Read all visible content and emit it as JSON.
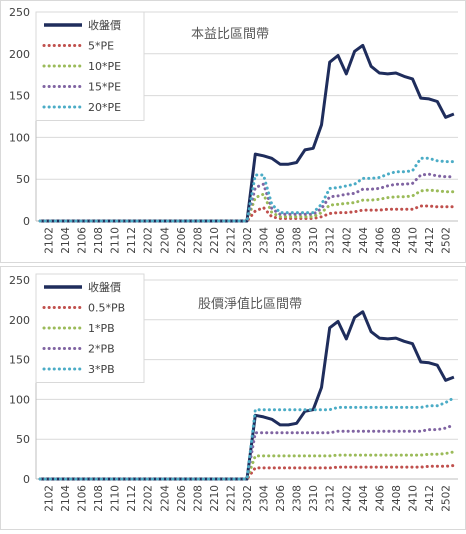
{
  "chart_data": [
    {
      "type": "line",
      "title": "本益比區間帶",
      "ylim": [
        0,
        250
      ],
      "yticks": [
        0,
        50,
        100,
        150,
        200,
        250
      ],
      "grid": true,
      "legend_position": "top-left",
      "x_tick_labels": [
        "2102",
        "2104",
        "2106",
        "2108",
        "2110",
        "2112",
        "2202",
        "2204",
        "2206",
        "2208",
        "2210",
        "2212",
        "2302",
        "2304",
        "2306",
        "2308",
        "2310",
        "2312",
        "2402",
        "2404",
        "2406",
        "2408",
        "2410",
        "2412",
        "2502"
      ],
      "x": [
        "2101",
        "2102",
        "2103",
        "2104",
        "2105",
        "2106",
        "2107",
        "2108",
        "2109",
        "2110",
        "2111",
        "2112",
        "2201",
        "2202",
        "2203",
        "2204",
        "2205",
        "2206",
        "2207",
        "2208",
        "2209",
        "2210",
        "2211",
        "2212",
        "2301",
        "2302",
        "2303",
        "2304",
        "2305",
        "2306",
        "2307",
        "2308",
        "2309",
        "2310",
        "2311",
        "2312",
        "2401",
        "2402",
        "2403",
        "2404",
        "2405",
        "2406",
        "2407",
        "2408",
        "2409",
        "2410",
        "2411",
        "2412",
        "2501",
        "2502",
        "2503"
      ],
      "series": [
        {
          "name": "收盤價",
          "color": "#1f2d5c",
          "style": "solid",
          "values": [
            0,
            0,
            0,
            0,
            0,
            0,
            0,
            0,
            0,
            0,
            0,
            0,
            0,
            0,
            0,
            0,
            0,
            0,
            0,
            0,
            0,
            0,
            0,
            0,
            0,
            0,
            80,
            78,
            75,
            68,
            68,
            70,
            85,
            87,
            115,
            190,
            198,
            176,
            203,
            210,
            185,
            177,
            176,
            177,
            173,
            170,
            147,
            146,
            143,
            124,
            128
          ]
        },
        {
          "name": "5*PE",
          "color": "#c0504d",
          "style": "dotted",
          "values": [
            0,
            0,
            0,
            0,
            0,
            0,
            0,
            0,
            0,
            0,
            0,
            0,
            0,
            0,
            0,
            0,
            0,
            0,
            0,
            0,
            0,
            0,
            0,
            0,
            0,
            0,
            12,
            16,
            5,
            3,
            3,
            3,
            3,
            3,
            5,
            9,
            10,
            10,
            11,
            13,
            13,
            13,
            14,
            14,
            14,
            14,
            18,
            18,
            17,
            17,
            17
          ]
        },
        {
          "name": "10*PE",
          "color": "#9bbb59",
          "style": "dotted",
          "values": [
            0,
            0,
            0,
            0,
            0,
            0,
            0,
            0,
            0,
            0,
            0,
            0,
            0,
            0,
            0,
            0,
            0,
            0,
            0,
            0,
            0,
            0,
            0,
            0,
            0,
            0,
            28,
            32,
            10,
            5,
            5,
            5,
            5,
            5,
            10,
            19,
            20,
            21,
            22,
            25,
            25,
            26,
            28,
            29,
            29,
            30,
            36,
            37,
            36,
            35,
            35
          ]
        },
        {
          "name": "15*PE",
          "color": "#8064a2",
          "style": "dotted",
          "values": [
            0,
            0,
            0,
            0,
            0,
            0,
            0,
            0,
            0,
            0,
            0,
            0,
            0,
            0,
            0,
            0,
            0,
            0,
            0,
            0,
            0,
            0,
            0,
            0,
            0,
            0,
            40,
            44,
            15,
            8,
            8,
            8,
            8,
            8,
            15,
            29,
            30,
            32,
            33,
            38,
            38,
            39,
            42,
            44,
            44,
            45,
            55,
            56,
            54,
            53,
            53
          ]
        },
        {
          "name": "20*PE",
          "color": "#4bacc6",
          "style": "dotted",
          "values": [
            0,
            0,
            0,
            0,
            0,
            0,
            0,
            0,
            0,
            0,
            0,
            0,
            0,
            0,
            0,
            0,
            0,
            0,
            0,
            0,
            0,
            0,
            0,
            0,
            0,
            0,
            55,
            55,
            20,
            10,
            10,
            10,
            10,
            10,
            20,
            39,
            40,
            42,
            44,
            51,
            51,
            52,
            56,
            59,
            59,
            60,
            75,
            75,
            72,
            71,
            71
          ]
        }
      ]
    },
    {
      "type": "line",
      "title": "股價淨值比區間帶",
      "ylim": [
        0,
        250
      ],
      "yticks": [
        0,
        50,
        100,
        150,
        200,
        250
      ],
      "grid": true,
      "legend_position": "top-left",
      "x_tick_labels": [
        "2102",
        "2104",
        "2106",
        "2108",
        "2110",
        "2112",
        "2202",
        "2204",
        "2206",
        "2208",
        "2210",
        "2212",
        "2302",
        "2304",
        "2306",
        "2308",
        "2310",
        "2312",
        "2402",
        "2404",
        "2406",
        "2408",
        "2410",
        "2412",
        "2502"
      ],
      "x": [
        "2101",
        "2102",
        "2103",
        "2104",
        "2105",
        "2106",
        "2107",
        "2108",
        "2109",
        "2110",
        "2111",
        "2112",
        "2201",
        "2202",
        "2203",
        "2204",
        "2205",
        "2206",
        "2207",
        "2208",
        "2209",
        "2210",
        "2211",
        "2212",
        "2301",
        "2302",
        "2303",
        "2304",
        "2305",
        "2306",
        "2307",
        "2308",
        "2309",
        "2310",
        "2311",
        "2312",
        "2401",
        "2402",
        "2403",
        "2404",
        "2405",
        "2406",
        "2407",
        "2408",
        "2409",
        "2410",
        "2411",
        "2412",
        "2501",
        "2502",
        "2503"
      ],
      "series": [
        {
          "name": "收盤價",
          "color": "#1f2d5c",
          "style": "solid",
          "values": [
            0,
            0,
            0,
            0,
            0,
            0,
            0,
            0,
            0,
            0,
            0,
            0,
            0,
            0,
            0,
            0,
            0,
            0,
            0,
            0,
            0,
            0,
            0,
            0,
            0,
            0,
            80,
            78,
            75,
            68,
            68,
            70,
            85,
            87,
            115,
            190,
            198,
            176,
            203,
            210,
            185,
            177,
            176,
            177,
            173,
            170,
            147,
            146,
            143,
            124,
            128
          ]
        },
        {
          "name": "0.5*PB",
          "color": "#c0504d",
          "style": "dotted",
          "values": [
            0,
            0,
            0,
            0,
            0,
            0,
            0,
            0,
            0,
            0,
            0,
            0,
            0,
            0,
            0,
            0,
            0,
            0,
            0,
            0,
            0,
            0,
            0,
            0,
            0,
            0,
            14,
            14,
            14,
            14,
            14,
            14,
            14,
            14,
            14,
            14,
            15,
            15,
            15,
            15,
            15,
            15,
            15,
            15,
            15,
            15,
            15,
            16,
            16,
            16,
            17
          ]
        },
        {
          "name": "1*PB",
          "color": "#9bbb59",
          "style": "dotted",
          "values": [
            0,
            0,
            0,
            0,
            0,
            0,
            0,
            0,
            0,
            0,
            0,
            0,
            0,
            0,
            0,
            0,
            0,
            0,
            0,
            0,
            0,
            0,
            0,
            0,
            0,
            0,
            29,
            29,
            29,
            29,
            29,
            29,
            29,
            29,
            29,
            29,
            30,
            30,
            30,
            30,
            30,
            30,
            30,
            30,
            30,
            30,
            30,
            31,
            31,
            32,
            34
          ]
        },
        {
          "name": "2*PB",
          "color": "#8064a2",
          "style": "dotted",
          "values": [
            0,
            0,
            0,
            0,
            0,
            0,
            0,
            0,
            0,
            0,
            0,
            0,
            0,
            0,
            0,
            0,
            0,
            0,
            0,
            0,
            0,
            0,
            0,
            0,
            0,
            0,
            58,
            58,
            58,
            58,
            58,
            58,
            58,
            58,
            58,
            58,
            60,
            60,
            60,
            60,
            60,
            60,
            60,
            60,
            60,
            60,
            60,
            62,
            62,
            64,
            68
          ]
        },
        {
          "name": "3*PB",
          "color": "#4bacc6",
          "style": "dotted",
          "values": [
            0,
            0,
            0,
            0,
            0,
            0,
            0,
            0,
            0,
            0,
            0,
            0,
            0,
            0,
            0,
            0,
            0,
            0,
            0,
            0,
            0,
            0,
            0,
            0,
            0,
            0,
            87,
            87,
            87,
            87,
            87,
            87,
            87,
            87,
            87,
            87,
            90,
            90,
            90,
            90,
            90,
            90,
            90,
            90,
            90,
            90,
            90,
            92,
            92,
            96,
            102
          ]
        }
      ]
    }
  ]
}
